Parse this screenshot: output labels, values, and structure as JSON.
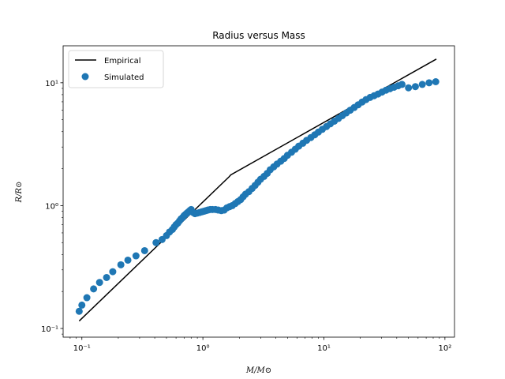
{
  "chart_data": {
    "type": "scatter",
    "title": "Radius versus Mass",
    "xlabel": "M/M⊙",
    "ylabel": "R/R⊙",
    "xscale": "log",
    "yscale": "log",
    "xlim": [
      0.07,
      120
    ],
    "ylim": [
      0.085,
      20
    ],
    "x_ticks": [
      {
        "value": 0.1,
        "label": "10⁻¹"
      },
      {
        "value": 1,
        "label": "10⁰"
      },
      {
        "value": 10,
        "label": "10¹"
      },
      {
        "value": 100,
        "label": "10²"
      }
    ],
    "y_ticks": [
      {
        "value": 0.1,
        "label": "10⁻¹"
      },
      {
        "value": 1,
        "label": "10⁰"
      },
      {
        "value": 10,
        "label": "10¹"
      }
    ],
    "grid": false,
    "legend": {
      "position": "top-left",
      "entries": [
        "Empirical",
        "Simulated"
      ]
    },
    "colors": {
      "empirical": "#000000",
      "simulated": "#1f77b4"
    },
    "series": [
      {
        "name": "Empirical",
        "kind": "line",
        "x": [
          0.095,
          1.65,
          1.7,
          85
        ],
        "y": [
          0.115,
          1.72,
          1.78,
          15.6
        ]
      },
      {
        "name": "Simulated",
        "kind": "scatter",
        "x": [
          0.095,
          0.1,
          0.11,
          0.125,
          0.14,
          0.16,
          0.18,
          0.21,
          0.24,
          0.28,
          0.33,
          0.41,
          0.46,
          0.5,
          0.53,
          0.56,
          0.58,
          0.6,
          0.62,
          0.64,
          0.66,
          0.68,
          0.7,
          0.72,
          0.74,
          0.76,
          0.78,
          0.8,
          0.83,
          0.86,
          0.9,
          0.94,
          0.98,
          1.02,
          1.06,
          1.1,
          1.15,
          1.2,
          1.27,
          1.34,
          1.42,
          1.5,
          1.58,
          1.66,
          1.75,
          1.85,
          1.95,
          2.05,
          2.15,
          2.25,
          2.4,
          2.55,
          2.7,
          2.85,
          3.0,
          3.2,
          3.4,
          3.6,
          3.85,
          4.1,
          4.4,
          4.7,
          5.0,
          5.4,
          5.8,
          6.2,
          6.7,
          7.2,
          7.8,
          8.4,
          9.0,
          9.7,
          10.5,
          11.3,
          12.2,
          13.2,
          14.2,
          15.3,
          16.5,
          17.8,
          19.2,
          20.7,
          22.3,
          24.1,
          26.0,
          28.0,
          30.2,
          32.6,
          35.2,
          38.0,
          41.0,
          44.2,
          50.0,
          57.0,
          65.0,
          74.0,
          84.0
        ],
        "y": [
          0.138,
          0.155,
          0.178,
          0.21,
          0.237,
          0.26,
          0.29,
          0.33,
          0.36,
          0.39,
          0.43,
          0.5,
          0.53,
          0.57,
          0.61,
          0.64,
          0.67,
          0.7,
          0.72,
          0.75,
          0.78,
          0.8,
          0.83,
          0.85,
          0.87,
          0.89,
          0.91,
          0.93,
          0.88,
          0.86,
          0.87,
          0.88,
          0.89,
          0.9,
          0.91,
          0.92,
          0.93,
          0.93,
          0.93,
          0.92,
          0.91,
          0.92,
          0.96,
          0.98,
          1.0,
          1.04,
          1.08,
          1.12,
          1.18,
          1.24,
          1.3,
          1.38,
          1.46,
          1.55,
          1.64,
          1.73,
          1.83,
          1.96,
          2.07,
          2.18,
          2.3,
          2.42,
          2.57,
          2.72,
          2.88,
          3.05,
          3.22,
          3.4,
          3.58,
          3.77,
          3.97,
          4.18,
          4.4,
          4.63,
          4.87,
          5.13,
          5.4,
          5.68,
          5.98,
          6.29,
          6.62,
          6.97,
          7.3,
          7.6,
          7.85,
          8.1,
          8.4,
          8.7,
          8.95,
          9.2,
          9.45,
          9.7,
          9.1,
          9.3,
          9.7,
          10.0,
          10.2
        ]
      }
    ]
  }
}
